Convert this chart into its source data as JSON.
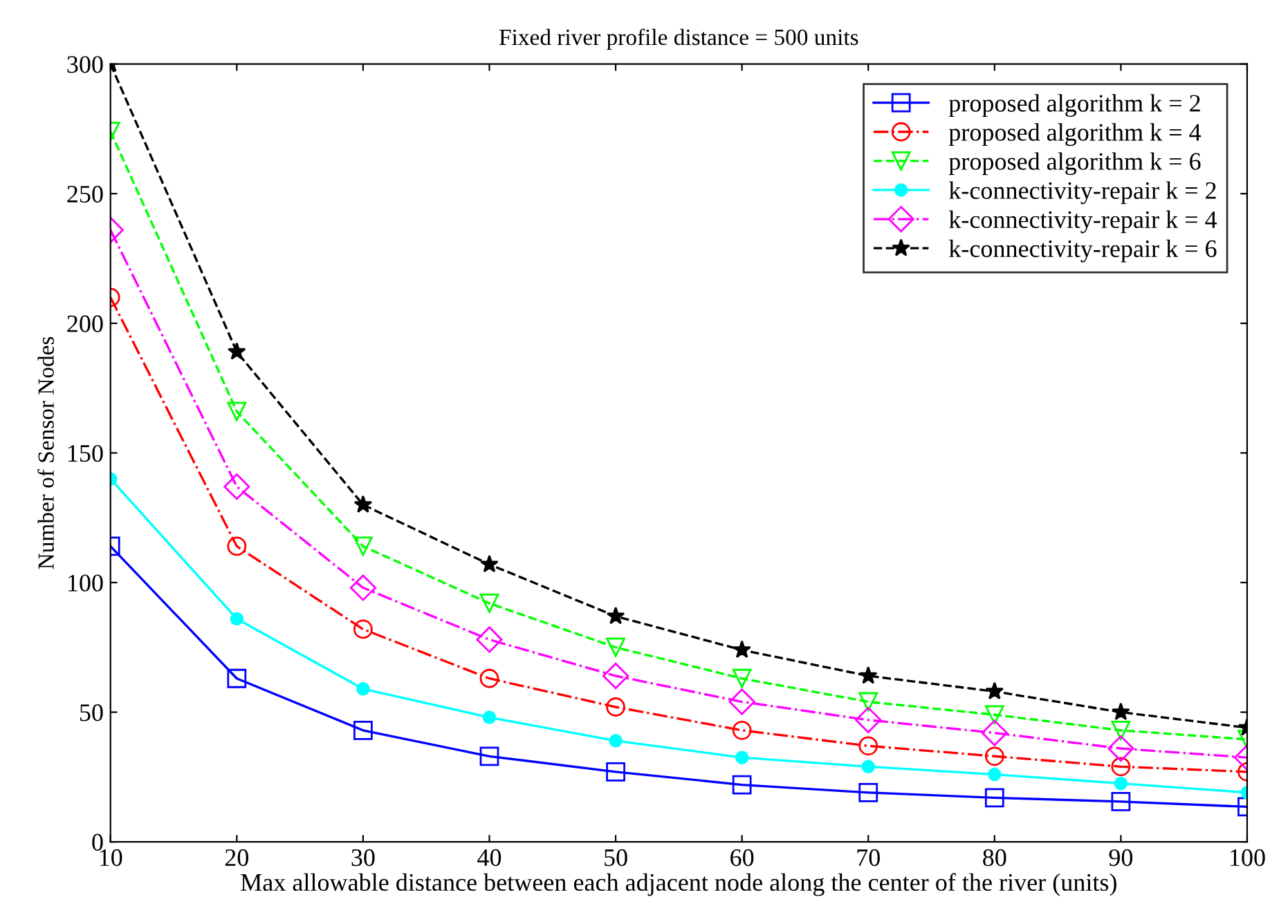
{
  "chart_data": {
    "type": "line",
    "title": "Fixed river profile distance = 500 units",
    "xlabel": "Max allowable distance between each adjacent node along the center of the river (units)",
    "ylabel": "Number of Sensor Nodes",
    "x": [
      10,
      20,
      30,
      40,
      50,
      60,
      70,
      80,
      90,
      100
    ],
    "xlim": [
      10,
      100
    ],
    "xticks": [
      10,
      20,
      30,
      40,
      50,
      60,
      70,
      80,
      90,
      100
    ],
    "ylim": [
      0,
      300
    ],
    "yticks": [
      0,
      50,
      100,
      150,
      200,
      250,
      300
    ],
    "grid": false,
    "legend": "top right",
    "series": [
      {
        "name": "proposed algorithm k = 2",
        "color": "#0000ff",
        "marker": "square",
        "line_style": "solid",
        "values": [
          114,
          63,
          43,
          33,
          27,
          22,
          19,
          17,
          15.5,
          13.5
        ]
      },
      {
        "name": "proposed algorithm k = 4",
        "color": "#ff0000",
        "marker": "circle",
        "line_style": "dashdot",
        "values": [
          210,
          114,
          82,
          63,
          52,
          43,
          37,
          33,
          29,
          27
        ]
      },
      {
        "name": "proposed algorithm k = 6",
        "color": "#00ff00",
        "marker": "triangle_down",
        "line_style": "dashed",
        "values": [
          274,
          166,
          114,
          92,
          75,
          63,
          54,
          49,
          43,
          39.5
        ]
      },
      {
        "name": "k-connectivity-repair k = 2",
        "color": "#00ffff",
        "marker": "point",
        "line_style": "solid",
        "values": [
          140,
          86,
          59,
          48,
          39,
          32.5,
          29,
          26,
          22.5,
          19
        ]
      },
      {
        "name": "k-connectivity-repair k = 4",
        "color": "#ff00ff",
        "marker": "diamond",
        "line_style": "dashdot",
        "values": [
          236,
          137,
          98,
          78,
          64,
          54,
          47,
          42,
          36,
          32.5
        ]
      },
      {
        "name": "k-connectivity-repair k = 6",
        "color": "#000000",
        "marker": "star",
        "line_style": "dashed",
        "values": [
          300,
          189,
          130,
          107,
          87,
          74,
          64,
          58,
          50,
          44
        ]
      }
    ]
  }
}
